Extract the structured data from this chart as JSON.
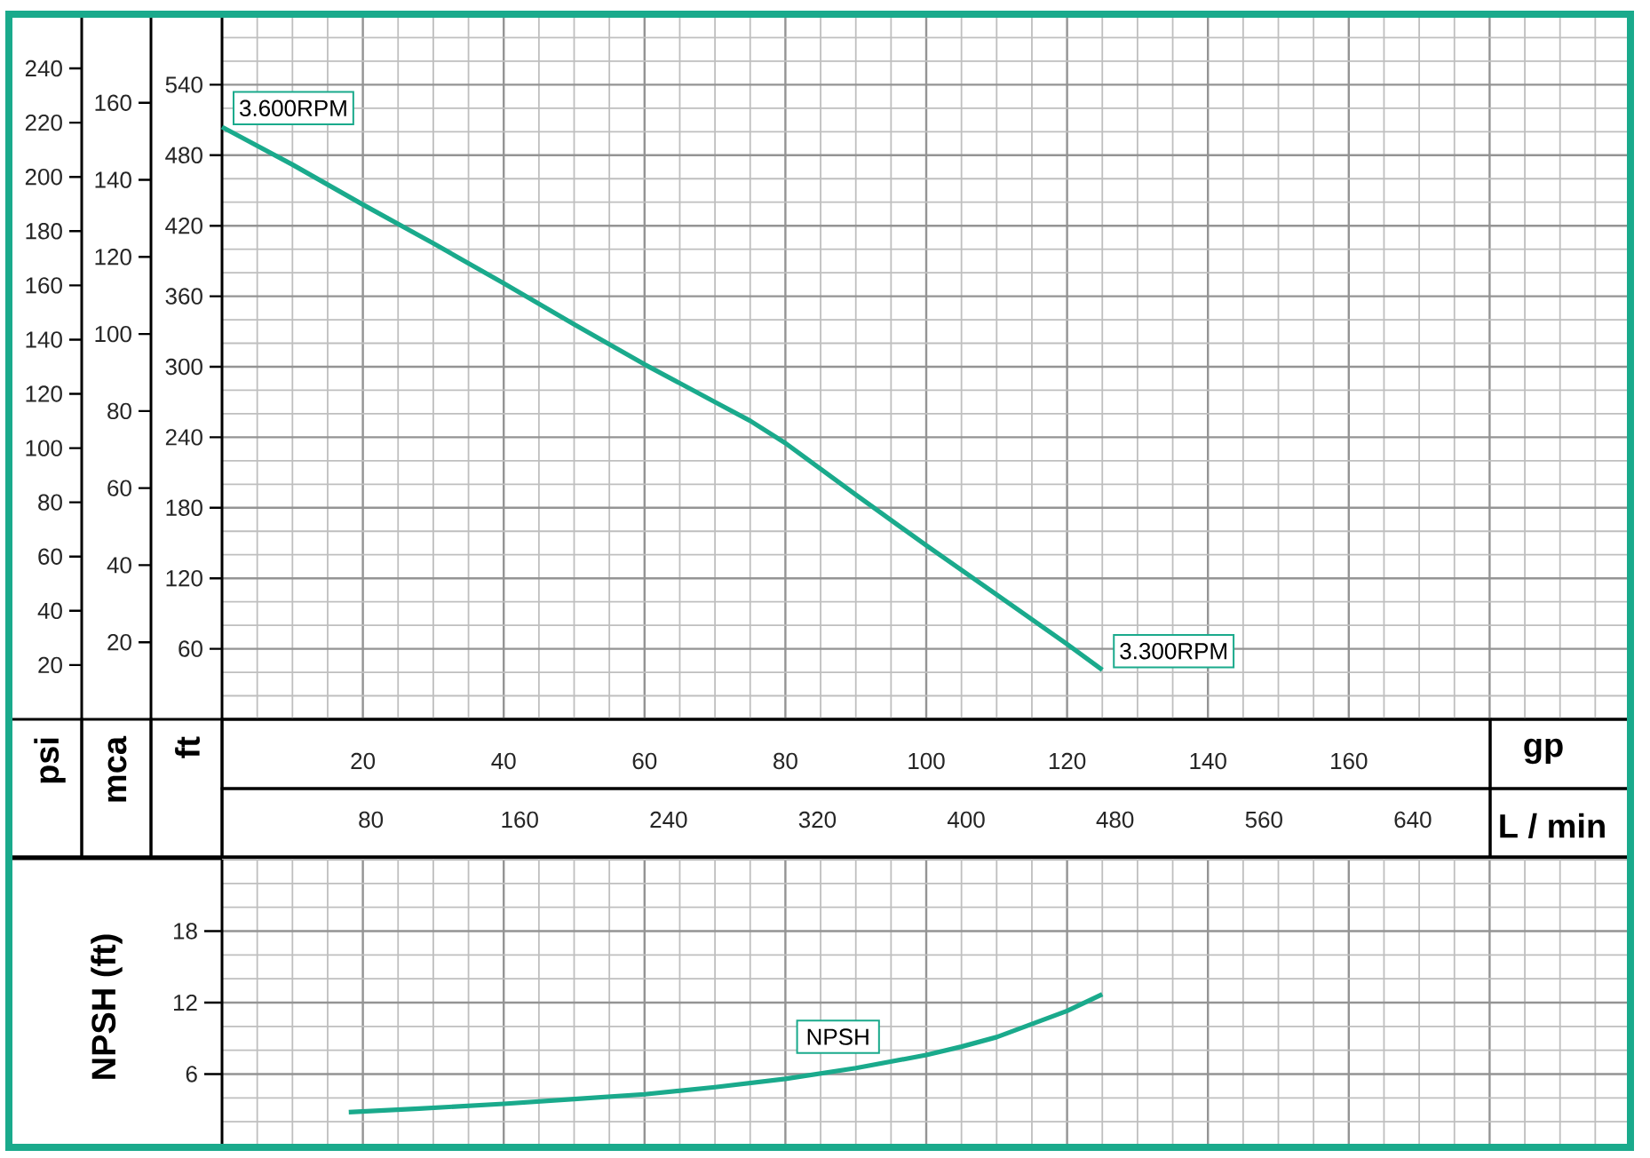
{
  "chart_data": [
    {
      "type": "line",
      "xlabel": "gp",
      "x2label": "L / min",
      "ylabel": "ft",
      "y2label": "psi",
      "y3label": "mca",
      "xlim": [
        0,
        200
      ],
      "xticks": [
        20,
        40,
        60,
        80,
        100,
        120,
        140,
        160,
        {
          "value": 180,
          "label": null
        }
      ],
      "x2lim": [
        0,
        757
      ],
      "x2ticks": [
        80,
        160,
        240,
        320,
        400,
        480,
        560,
        640
      ],
      "ylim": [
        0,
        600
      ],
      "yticks": [
        60,
        120,
        180,
        240,
        300,
        360,
        420,
        480,
        540
      ],
      "y2lim": [
        0,
        260
      ],
      "y2ticks": [
        20,
        40,
        60,
        80,
        100,
        120,
        140,
        160,
        180,
        200,
        220,
        240
      ],
      "y3lim": [
        0,
        183
      ],
      "y3ticks": [
        20,
        40,
        60,
        80,
        100,
        120,
        140,
        160
      ],
      "grid": true,
      "series": [
        {
          "color": "#1aaa8c",
          "x": [
            0,
            10,
            20,
            30,
            40,
            50,
            60,
            70,
            75,
            80,
            90,
            100,
            110,
            120,
            125
          ],
          "values": [
            504,
            472,
            438,
            405,
            371,
            336,
            302,
            270,
            254,
            235,
            191,
            148,
            106,
            64,
            42
          ]
        }
      ],
      "annotations": [
        {
          "text": "3.600RPM",
          "x": 0,
          "y": 504
        },
        {
          "text": "3.300RPM",
          "x": 125,
          "y": 42
        }
      ]
    },
    {
      "type": "line",
      "ylabel": "NPSH (ft)",
      "xlim": [
        0,
        200
      ],
      "xticks": [
        20,
        40,
        60,
        80,
        100,
        120,
        140,
        160,
        180
      ],
      "ylim": [
        0,
        24
      ],
      "yticks": [
        6,
        12,
        18
      ],
      "tick_labels": "y",
      "grid": true,
      "series": [
        {
          "name": "NPSH",
          "color": "#1aaa8c",
          "x": [
            18,
            28,
            40,
            50,
            60,
            70,
            80,
            90,
            100,
            105,
            110,
            115,
            120,
            125
          ],
          "values": [
            2.8,
            3.1,
            3.5,
            3.9,
            4.3,
            4.9,
            5.6,
            6.5,
            7.6,
            8.3,
            9.1,
            10.2,
            11.3,
            12.7
          ]
        }
      ]
    }
  ]
}
